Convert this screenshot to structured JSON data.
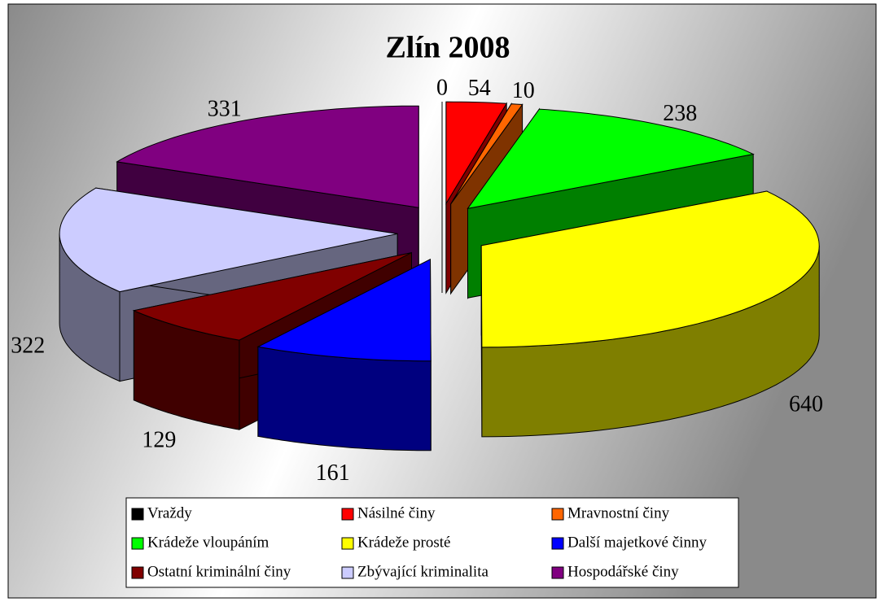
{
  "chart_data": {
    "type": "pie",
    "title": "Zlín 2008",
    "categories": [
      "Vraždy",
      "Násilné činy",
      "Mravnostní činy",
      "Krádeže vloupáním",
      "Krádeže prosté",
      "Další majetkové činny",
      "Ostatní kriminální činy",
      "Zbývající kriminalita",
      "Hospodářské činy"
    ],
    "values": [
      0,
      54,
      10,
      238,
      640,
      161,
      129,
      322,
      331
    ],
    "colors": [
      "#000000",
      "#ff0000",
      "#ff6600",
      "#00ff00",
      "#ffff00",
      "#0000ff",
      "#800000",
      "#ccccff",
      "#800080"
    ],
    "legend": "bottom"
  }
}
